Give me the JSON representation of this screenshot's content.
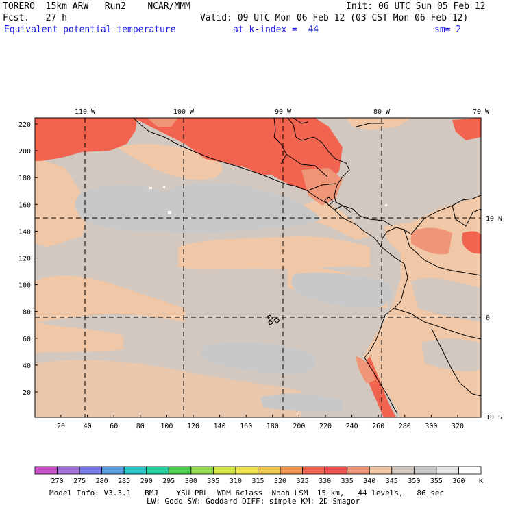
{
  "header": {
    "model": "TORERO  15km ARW   Run2    NCAR/MMM",
    "init": "Init: 06 UTC Sun 05 Feb 12",
    "fcst": "Fcst.   27 h",
    "valid": "Valid: 09 UTC Mon 06 Feb 12 (03 CST Mon 06 Feb 12)",
    "field": "Equivalent potential temperature",
    "level": "at k-index =  44",
    "smoothing": "sm= 2"
  },
  "map": {
    "lon_labels": [
      "110 W",
      "100 W",
      "90 W",
      "80 W",
      "70 W"
    ],
    "lat_labels": [
      "10 N",
      "0",
      "10 S"
    ],
    "y_ticks": [
      "220",
      "200",
      "180",
      "160",
      "140",
      "120",
      "100",
      "80",
      "60",
      "40",
      "20"
    ],
    "x_ticks": [
      "20",
      "40",
      "60",
      "80",
      "100",
      "120",
      "140",
      "160",
      "180",
      "200",
      "220",
      "240",
      "260",
      "280",
      "300",
      "320"
    ]
  },
  "colorbar": {
    "labels": [
      "270",
      "275",
      "280",
      "285",
      "290",
      "295",
      "300",
      "305",
      "310",
      "315",
      "320",
      "325",
      "330",
      "335",
      "340",
      "345",
      "350",
      "355",
      "360"
    ],
    "unit": "K",
    "colors": [
      "#c850c8",
      "#a070d8",
      "#7878e8",
      "#5aa0e0",
      "#28c8c8",
      "#28d2a0",
      "#50d050",
      "#96dc50",
      "#d2e646",
      "#f0e650",
      "#f0c850",
      "#f09650",
      "#f06450",
      "#f05050",
      "#f09678",
      "#f0c8a8",
      "#d2c8c0",
      "#c8c8c8",
      "#e8e8e8",
      "#ffffff"
    ]
  },
  "footer": {
    "line1": "Model Info: V3.3.1   BMJ    YSU PBL  WDM 6class  Noah LSM  15 km,   44 levels,   86 sec",
    "line2": "LW: Godd SW: Goddard DIFF: simple KM: 2D Smagor"
  }
}
